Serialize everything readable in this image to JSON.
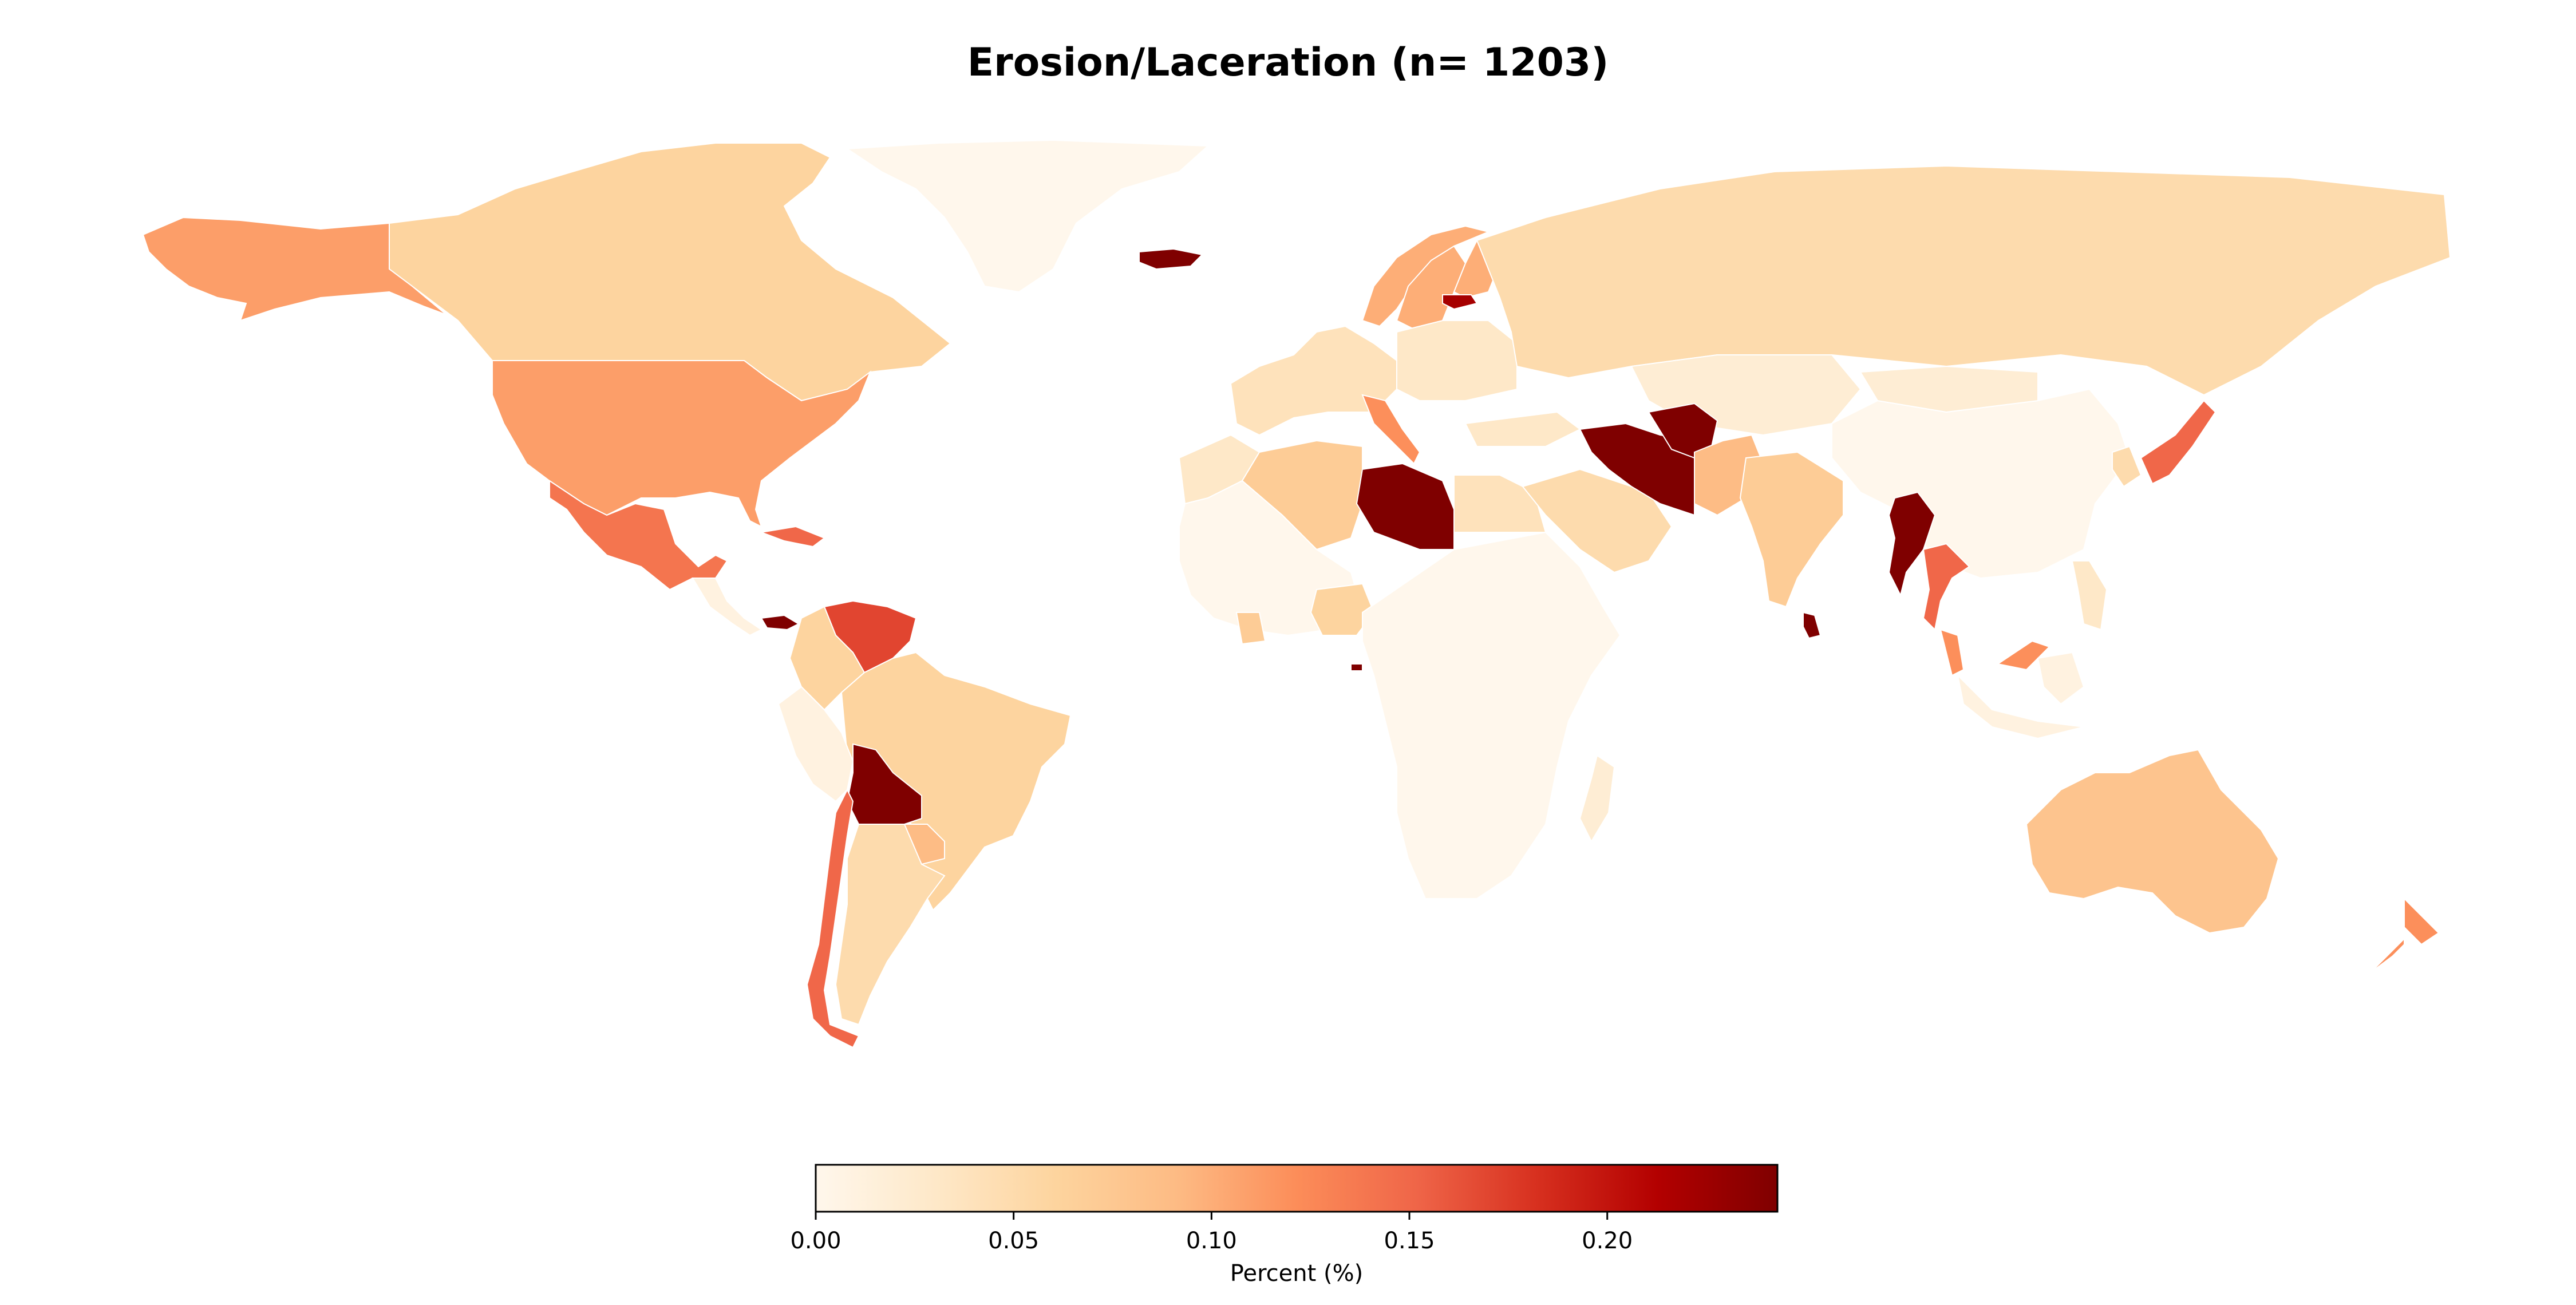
{
  "title": "Erosion/Laceration (n= 1203)",
  "colorbar": {
    "label": "Percent (%)",
    "min": 0.0,
    "max": 0.243,
    "ticks": [
      "0.00",
      "0.05",
      "0.10",
      "0.15",
      "0.20"
    ],
    "tick_values": [
      0.0,
      0.05,
      0.1,
      0.15,
      0.2
    ],
    "colormap": "OrRd",
    "stops": [
      "#fff7ec",
      "#fee8c8",
      "#fdd49e",
      "#fdbb84",
      "#fc8d59",
      "#ef6548",
      "#d7301f",
      "#b30000",
      "#7f0000"
    ]
  },
  "chart_data": {
    "type": "choropleth",
    "title": "Erosion/Laceration (n= 1203)",
    "colorbar_label": "Percent (%)",
    "range": [
      0.0,
      0.243
    ],
    "values": {
      "Greenland": 0.0,
      "Canada": 0.06,
      "United States": 0.11,
      "Alaska": 0.11,
      "Mexico": 0.14,
      "Cuba": 0.15,
      "Central America": 0.01,
      "Panama": 0.243,
      "Venezuela": 0.17,
      "Colombia": 0.06,
      "Brazil": 0.06,
      "Peru": 0.01,
      "Bolivia": 0.243,
      "Paraguay": 0.09,
      "Argentina": 0.05,
      "Chile": 0.15,
      "Iceland": 0.243,
      "Norway": 0.1,
      "Sweden": 0.1,
      "Finland": 0.1,
      "Estonia": 0.22,
      "Western Europe": 0.04,
      "Eastern Europe": 0.03,
      "Italy": 0.12,
      "Russia": 0.05,
      "Kazakhstan": 0.02,
      "China": 0.0,
      "Mongolia": 0.02,
      "Japan": 0.15,
      "Korea": 0.05,
      "Morocco": 0.03,
      "Algeria": 0.07,
      "Libya": 0.243,
      "Egypt": 0.04,
      "West Africa": 0.0,
      "Ghana": 0.07,
      "Nigeria": 0.06,
      "Equatorial Guinea": 0.243,
      "Uganda": 0.11,
      "Kenya": 0.04,
      "Central and Southern Africa": 0.0,
      "Madagascar": 0.02,
      "Saudi Arabia": 0.05,
      "Turkey": 0.03,
      "Iran": 0.243,
      "Afghanistan": 0.243,
      "Pakistan": 0.09,
      "India": 0.07,
      "Sri Lanka": 0.243,
      "Myanmar": 0.243,
      "Thailand": 0.15,
      "Malaysia": 0.12,
      "Indonesia": 0.01,
      "Philippines": 0.03,
      "Australia": 0.08,
      "New Zealand": 0.12
    }
  }
}
